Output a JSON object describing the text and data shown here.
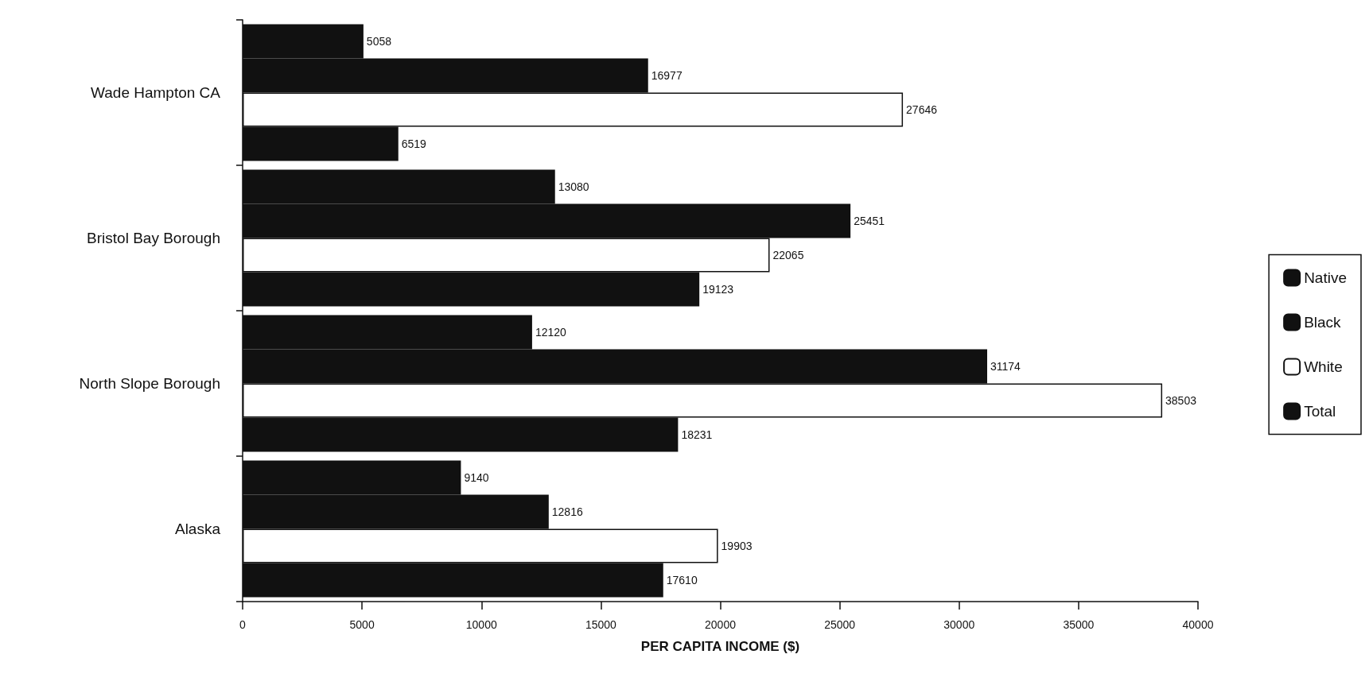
{
  "chart_data": {
    "type": "bar",
    "orientation": "horizontal",
    "xlabel": "PER CAPITA INCOME ($)",
    "categories": [
      "Wade Hampton CA",
      "Bristol Bay Borough",
      "North Slope Borough",
      "Alaska"
    ],
    "series": [
      {
        "name": "Native",
        "color": "#111111",
        "values": [
          5058,
          13080,
          12120,
          9140
        ]
      },
      {
        "name": "Black",
        "color": "#111111",
        "values": [
          16977,
          25451,
          31174,
          12816
        ]
      },
      {
        "name": "White",
        "color": "#ffffff",
        "values": [
          27646,
          22065,
          38503,
          19903
        ]
      },
      {
        "name": "Total",
        "color": "#111111",
        "values": [
          6519,
          19123,
          18231,
          17610
        ]
      }
    ],
    "xlim": [
      0,
      40000
    ],
    "xticks": [
      0,
      5000,
      10000,
      15000,
      20000,
      25000,
      30000,
      35000,
      40000
    ],
    "data_labels": true,
    "grid": false,
    "legend": "right"
  }
}
